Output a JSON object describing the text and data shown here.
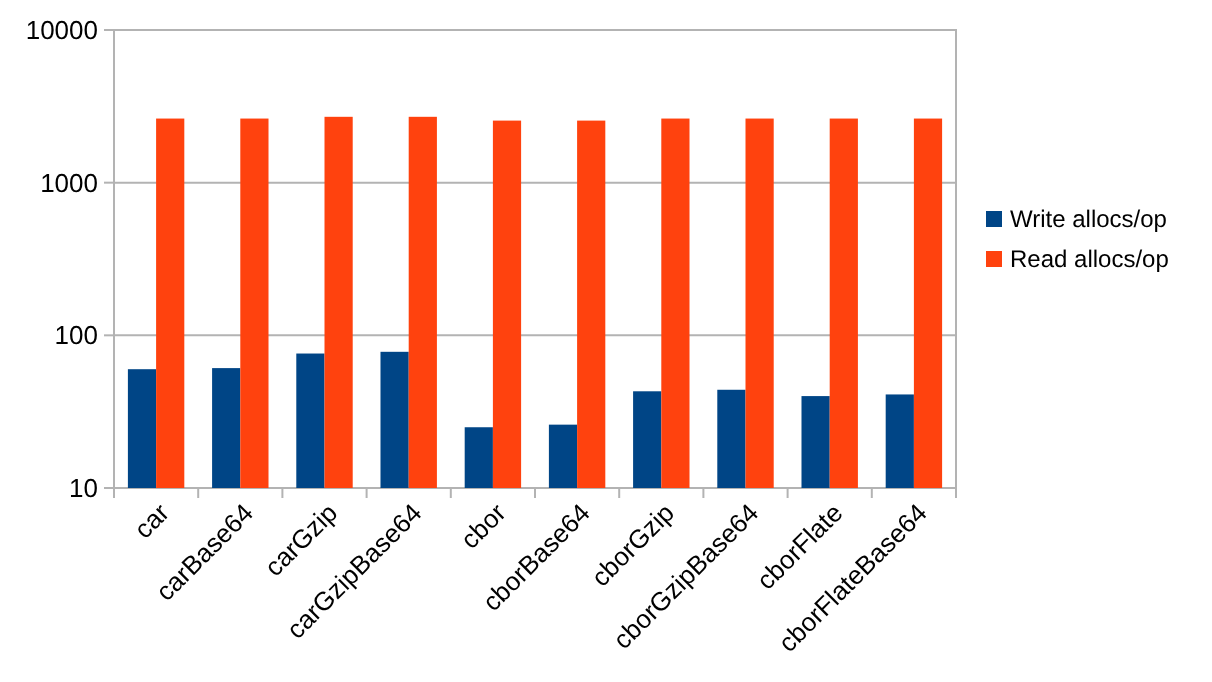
{
  "chart_data": {
    "type": "bar",
    "categories": [
      "car",
      "carBase64",
      "carGzip",
      "carGzipBase64",
      "cbor",
      "cborBase64",
      "cborGzip",
      "cborGzipBase64",
      "cborFlate",
      "cborFlateBase64"
    ],
    "series": [
      {
        "name": "Write allocs/op",
        "color": "#004586",
        "values": [
          60,
          61,
          76,
          78,
          25,
          26,
          43,
          44,
          40,
          41
        ]
      },
      {
        "name": "Read allocs/op",
        "color": "#ff420e",
        "values": [
          2630,
          2630,
          2700,
          2700,
          2550,
          2550,
          2630,
          2630,
          2630,
          2630
        ]
      }
    ],
    "log": true,
    "ylim": [
      10,
      10000
    ],
    "yticks": [
      10,
      100,
      1000,
      10000
    ],
    "grid": "y",
    "legend": "right"
  }
}
